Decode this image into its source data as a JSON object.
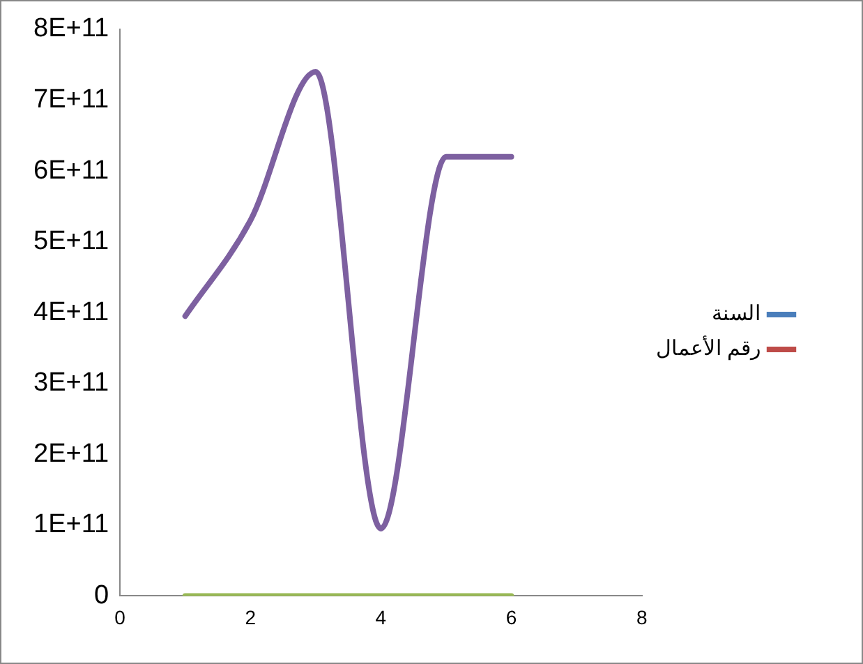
{
  "chart_data": {
    "type": "line",
    "x": [
      1,
      2,
      3,
      4,
      5,
      6
    ],
    "series": [
      {
        "name": "السنة",
        "color": "#4a7ebb",
        "values": [
          null,
          null,
          null,
          null,
          null,
          null
        ]
      },
      {
        "name": "رقم الأعمال",
        "color": "#be4b48",
        "values": [
          null,
          null,
          null,
          null,
          null,
          null
        ]
      },
      {
        "color": "#98b954",
        "values": [
          0,
          0,
          0,
          0,
          0,
          0
        ]
      },
      {
        "color": "#7d60a0",
        "values": [
          395000000000.0,
          530000000000.0,
          740000000000.0,
          95000000000.0,
          620000000000.0,
          620000000000.0
        ]
      }
    ],
    "xlim": [
      0,
      8
    ],
    "xticks": [
      0,
      2,
      4,
      6,
      8
    ],
    "ylim": [
      0,
      800000000000.0
    ],
    "yticks": [
      0,
      {
        "value": 100000000000.0,
        "label": "1E+11"
      },
      {
        "value": 200000000000.0,
        "label": "2E+11"
      },
      {
        "value": 300000000000.0,
        "label": "3E+11"
      },
      {
        "value": 400000000000.0,
        "label": "4E+11"
      },
      {
        "value": 500000000000.0,
        "label": "5E+11"
      },
      {
        "value": 600000000000.0,
        "label": "6E+11"
      },
      {
        "value": 700000000000.0,
        "label": "7E+11"
      },
      {
        "value": 800000000000.0,
        "label": "8E+11"
      }
    ],
    "grid": false,
    "legend": "right",
    "marker": "none",
    "line_style": "solid"
  }
}
